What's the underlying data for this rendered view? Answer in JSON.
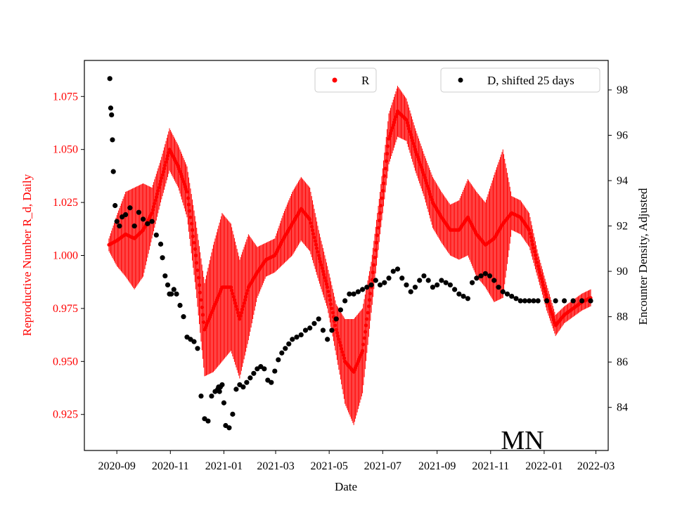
{
  "chart_data": {
    "type": "scatter",
    "xlabel": "Date",
    "ylabel_left": "Reproductive Number R_d, Daily",
    "ylabel_right": "Encounter Density, Adjusted",
    "annotation": "MN",
    "colors": {
      "r": "#ff0000",
      "d": "#000000"
    },
    "x_ticks": [
      "2020-09",
      "2020-11",
      "2021-01",
      "2021-03",
      "2021-05",
      "2021-07",
      "2021-09",
      "2021-11",
      "2022-01",
      "2022-03"
    ],
    "x_tick_days": [
      0,
      61,
      122,
      181,
      242,
      303,
      365,
      426,
      487,
      546
    ],
    "x_range_days": [
      -37,
      560
    ],
    "y_left_ticks": [
      "0.925",
      "0.950",
      "0.975",
      "1.000",
      "1.025",
      "1.050",
      "1.075"
    ],
    "y_left_tick_values": [
      0.925,
      0.95,
      0.975,
      1.0,
      1.025,
      1.05,
      1.075
    ],
    "y_left_range": [
      0.908,
      1.092
    ],
    "y_right_ticks": [
      "84",
      "86",
      "88",
      "90",
      "92",
      "94",
      "96",
      "98"
    ],
    "y_right_tick_values": [
      84,
      86,
      88,
      90,
      92,
      94,
      96,
      98
    ],
    "y_right_range": [
      82.1,
      99.3
    ],
    "legend": [
      {
        "label": "R",
        "position": "top-center"
      },
      {
        "label": "D, shifted 25 days",
        "position": "top-right"
      }
    ],
    "series_r": {
      "name": "R",
      "days": [
        -9,
        0,
        10,
        20,
        30,
        40,
        50,
        60,
        70,
        80,
        90,
        100,
        110,
        120,
        130,
        140,
        150,
        160,
        170,
        180,
        190,
        200,
        210,
        220,
        230,
        240,
        250,
        260,
        270,
        280,
        290,
        300,
        310,
        320,
        330,
        340,
        350,
        360,
        370,
        380,
        390,
        400,
        410,
        420,
        430,
        440,
        450,
        460,
        470,
        480,
        490,
        500,
        510,
        520,
        530,
        540
      ],
      "values": [
        1.005,
        1.007,
        1.01,
        1.008,
        1.012,
        1.02,
        1.035,
        1.05,
        1.042,
        1.03,
        1.0,
        0.965,
        0.975,
        0.985,
        0.985,
        0.97,
        0.985,
        0.992,
        0.998,
        1.0,
        1.008,
        1.015,
        1.022,
        1.017,
        1.0,
        0.985,
        0.965,
        0.95,
        0.945,
        0.955,
        0.985,
        1.02,
        1.055,
        1.068,
        1.064,
        1.05,
        1.038,
        1.025,
        1.018,
        1.012,
        1.012,
        1.018,
        1.01,
        1.005,
        1.008,
        1.015,
        1.02,
        1.018,
        1.012,
        0.995,
        0.98,
        0.967,
        0.972,
        0.975,
        0.978,
        0.98
      ],
      "error": [
        0.003,
        0.012,
        0.02,
        0.024,
        0.022,
        0.012,
        0.01,
        0.01,
        0.01,
        0.012,
        0.016,
        0.022,
        0.03,
        0.035,
        0.03,
        0.028,
        0.025,
        0.012,
        0.008,
        0.008,
        0.012,
        0.015,
        0.015,
        0.015,
        0.012,
        0.01,
        0.012,
        0.02,
        0.025,
        0.02,
        0.012,
        0.01,
        0.012,
        0.012,
        0.01,
        0.01,
        0.01,
        0.012,
        0.012,
        0.012,
        0.014,
        0.018,
        0.02,
        0.02,
        0.03,
        0.035,
        0.008,
        0.008,
        0.008,
        0.006,
        0.006,
        0.005,
        0.004,
        0.004,
        0.004,
        0.004
      ]
    },
    "series_d": {
      "name": "D, shifted 25 days",
      "days": [
        -8,
        -7,
        -6,
        -5,
        -4,
        -2,
        0,
        3,
        6,
        10,
        15,
        20,
        25,
        30,
        35,
        40,
        45,
        50,
        52,
        55,
        58,
        60,
        62,
        65,
        68,
        72,
        76,
        80,
        84,
        88,
        92,
        96,
        100,
        104,
        108,
        112,
        115,
        116,
        117,
        118,
        120,
        122,
        124,
        128,
        132,
        136,
        140,
        144,
        148,
        152,
        156,
        160,
        164,
        168,
        172,
        176,
        180,
        184,
        188,
        192,
        196,
        200,
        205,
        210,
        215,
        220,
        225,
        230,
        235,
        240,
        245,
        250,
        255,
        260,
        265,
        270,
        275,
        280,
        285,
        290,
        295,
        300,
        305,
        310,
        315,
        320,
        325,
        330,
        335,
        340,
        345,
        350,
        355,
        360,
        365,
        370,
        375,
        380,
        385,
        390,
        395,
        400,
        405,
        410,
        415,
        420,
        425,
        430,
        435,
        440,
        445,
        450,
        455,
        460,
        465,
        470,
        475,
        480,
        490,
        500,
        510,
        520,
        530,
        540
      ],
      "values": [
        98.5,
        97.2,
        96.9,
        95.8,
        94.4,
        92.9,
        92.2,
        92.0,
        92.4,
        92.5,
        92.8,
        92.0,
        92.6,
        92.3,
        92.1,
        92.2,
        91.6,
        91.2,
        90.6,
        89.8,
        89.4,
        89.0,
        89.0,
        89.2,
        89.0,
        88.5,
        88.0,
        87.1,
        87.0,
        86.9,
        86.6,
        84.5,
        83.5,
        83.4,
        84.5,
        84.7,
        84.8,
        84.9,
        84.7,
        84.9,
        85.0,
        84.2,
        83.2,
        83.1,
        83.7,
        84.8,
        85.0,
        84.9,
        85.1,
        85.3,
        85.5,
        85.7,
        85.8,
        85.7,
        85.2,
        85.1,
        85.6,
        86.1,
        86.4,
        86.6,
        86.8,
        87.0,
        87.1,
        87.2,
        87.4,
        87.5,
        87.7,
        87.9,
        87.4,
        87.0,
        87.4,
        87.9,
        88.3,
        88.7,
        89.0,
        89.0,
        89.1,
        89.2,
        89.3,
        89.4,
        89.6,
        89.4,
        89.5,
        89.7,
        90.0,
        90.1,
        89.7,
        89.4,
        89.1,
        89.3,
        89.6,
        89.8,
        89.6,
        89.3,
        89.4,
        89.6,
        89.5,
        89.4,
        89.2,
        89.0,
        88.9,
        88.8,
        89.5,
        89.7,
        89.8,
        89.9,
        89.8,
        89.6,
        89.3,
        89.1,
        89.0,
        88.9,
        88.8,
        88.7,
        88.7,
        88.7,
        88.7,
        88.7,
        88.7,
        88.7,
        88.7,
        88.7,
        88.7,
        88.7
      ]
    }
  }
}
